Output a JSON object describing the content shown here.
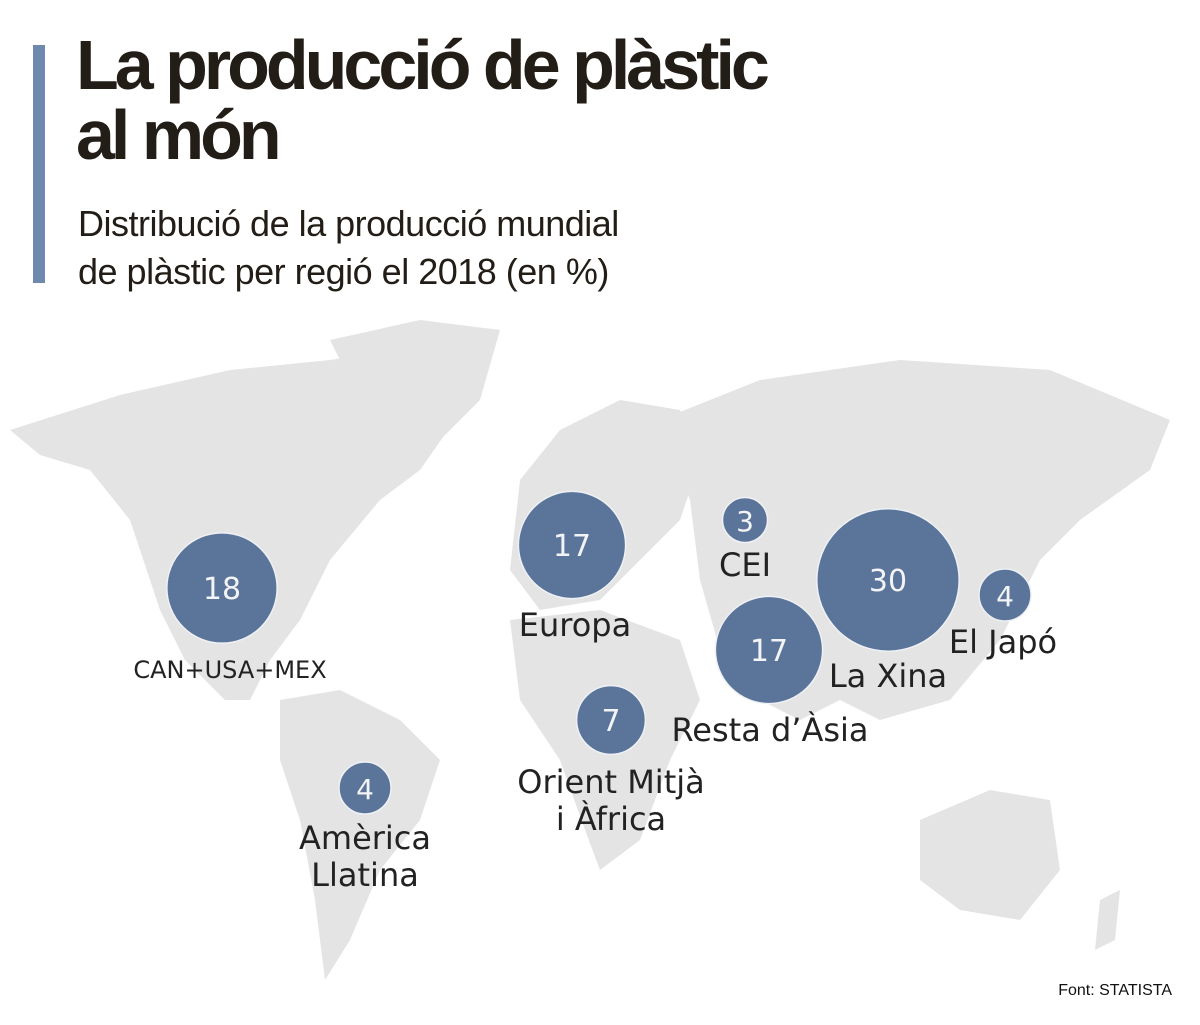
{
  "title_line1": "La producció de plàstic",
  "title_line2": "al món",
  "subtitle_line1": "Distribució de la producció mundial",
  "subtitle_line2": "de plàstic per regió el 2018 (en %)",
  "source": "Font: STATISTA",
  "colors": {
    "bubble": "#5b7499",
    "accent_bar": "#6f88ad",
    "land": "#e4e4e4",
    "text": "#231d17"
  },
  "chart_data": {
    "type": "bubble-map",
    "title": "La producció de plàstic al món",
    "subtitle": "Distribució de la producció mundial de plàstic per regió el 2018 (en %)",
    "unit": "%",
    "year": 2018,
    "regions": [
      {
        "label": [
          "CAN+USA+MEX"
        ],
        "value": 18
      },
      {
        "label": [
          "Europa"
        ],
        "value": 17
      },
      {
        "label": [
          "CEI"
        ],
        "value": 3
      },
      {
        "label": [
          "La Xina"
        ],
        "value": 30
      },
      {
        "label": [
          "El Japó"
        ],
        "value": 4
      },
      {
        "label": [
          "Resta d’Àsia"
        ],
        "value": 17
      },
      {
        "label": [
          "Orient Mitjà",
          "i Àfrica"
        ],
        "value": 7
      },
      {
        "label": [
          "Amèrica",
          "Llatina"
        ],
        "value": 4
      }
    ]
  }
}
